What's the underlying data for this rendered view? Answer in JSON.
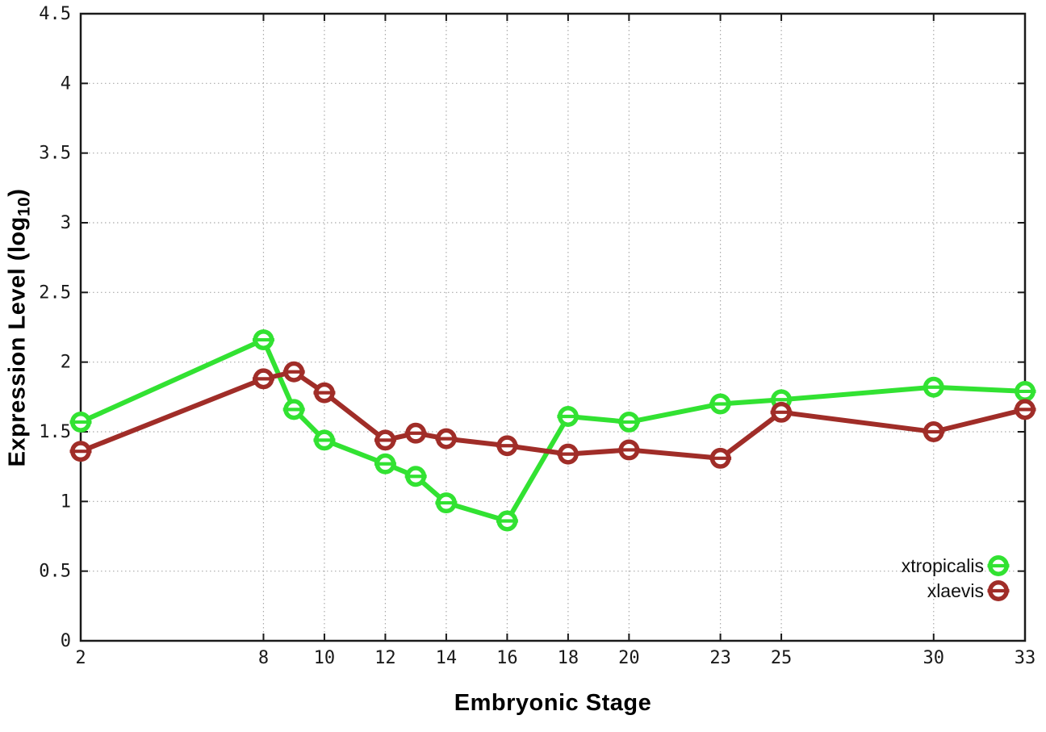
{
  "chart_data": {
    "type": "line",
    "title": "",
    "xlabel": "Embryonic Stage",
    "ylabel": "Expression Level (log₁₀)",
    "ylabel_parts": {
      "prefix": "Expression Level (log",
      "sub": "10",
      "suffix": ")"
    },
    "xlim": [
      2,
      33
    ],
    "ylim": [
      0,
      4.5
    ],
    "x_ticks": [
      2,
      8,
      10,
      12,
      14,
      16,
      18,
      20,
      23,
      25,
      30,
      33
    ],
    "y_ticks": [
      0,
      0.5,
      1,
      1.5,
      2,
      2.5,
      3,
      3.5,
      4,
      4.5
    ],
    "grid": true,
    "grid_style": "dotted",
    "legend_position": "bottom-right",
    "marker": "open-circle-with-horizontal-error-bar",
    "colors": {
      "border": "#1a1a1a",
      "grid": "#aaaaaa",
      "tick_label": "#1a1a1a",
      "background": "#ffffff"
    },
    "series": [
      {
        "name": "xtropicalis",
        "color": "#32E232",
        "x": [
          2,
          8,
          9,
          10,
          12,
          13,
          14,
          16,
          18,
          20,
          23,
          25,
          30,
          33
        ],
        "y": [
          1.57,
          2.16,
          1.66,
          1.44,
          1.27,
          1.18,
          0.99,
          0.86,
          1.61,
          1.57,
          1.7,
          1.73,
          1.82,
          1.79
        ]
      },
      {
        "name": "xlaevis",
        "color": "#A02D28",
        "x": [
          2,
          8,
          9,
          10,
          12,
          13,
          14,
          16,
          18,
          20,
          23,
          25,
          30,
          33
        ],
        "y": [
          1.36,
          1.88,
          1.93,
          1.78,
          1.44,
          1.49,
          1.45,
          1.4,
          1.34,
          1.37,
          1.31,
          1.64,
          1.5,
          1.66
        ]
      }
    ]
  }
}
